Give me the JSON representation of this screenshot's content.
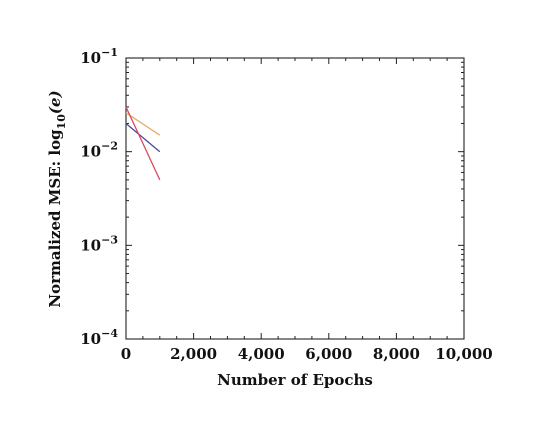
{
  "chart_data": {
    "type": "line",
    "title": "",
    "xlabel": "Number of Epochs",
    "ylabel_text": "Normalized MSE: log",
    "ylabel_sub": "10",
    "ylabel_arg": "(e)",
    "xlim": [
      0,
      10000
    ],
    "ylim": [
      0.0001,
      0.1
    ],
    "yscale": "log",
    "grid": false,
    "x_ticks": [
      0,
      2000,
      4000,
      6000,
      8000,
      10000
    ],
    "x_tick_labels": [
      "0",
      "2,000",
      "4,000",
      "6,000",
      "8,000",
      "10,000"
    ],
    "y_ticks": [
      0.1,
      0.01,
      0.001,
      0.0001
    ],
    "y_tick_labels": [
      {
        "base": "10",
        "exp": "−1"
      },
      {
        "base": "10",
        "exp": "−2"
      },
      {
        "base": "10",
        "exp": "−3"
      },
      {
        "base": "10",
        "exp": "−4"
      }
    ],
    "series": [
      {
        "color": "#e8a96b",
        "x": [
          0,
          1000
        ],
        "y": [
          0.026,
          0.015
        ]
      },
      {
        "color": "#4a4a9c",
        "x": [
          0,
          1000
        ],
        "y": [
          0.02,
          0.01
        ]
      },
      {
        "color": "#d94a5f",
        "x": [
          0,
          1000
        ],
        "y": [
          0.03,
          0.005
        ]
      }
    ]
  }
}
